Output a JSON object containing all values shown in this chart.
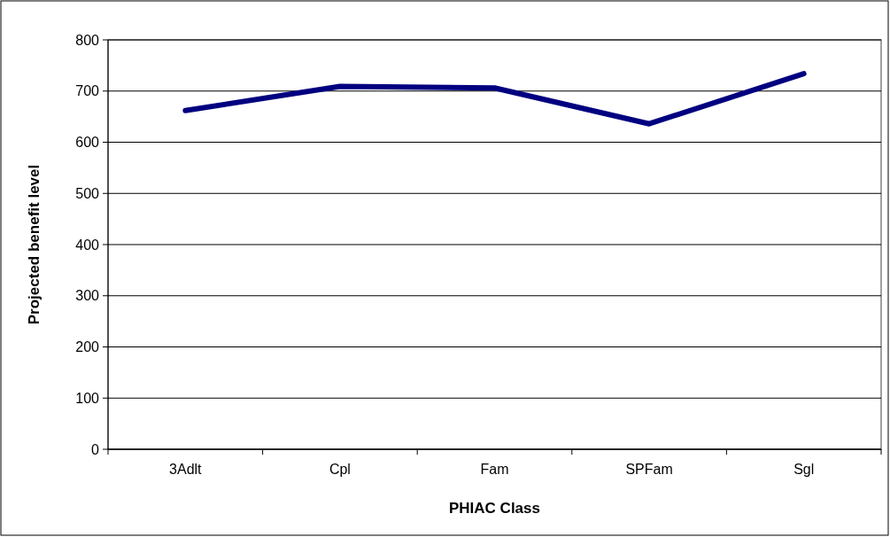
{
  "chart_data": {
    "type": "line",
    "xlabel": "PHIAC Class",
    "ylabel": "Projected benefit level",
    "categories": [
      "3Adlt",
      "Cpl",
      "Fam",
      "SPFam",
      "Sgl"
    ],
    "series": [
      {
        "color": "#000080",
        "values": [
          662,
          709,
          706,
          636,
          734
        ]
      }
    ],
    "ylim": [
      0,
      800
    ],
    "yticks": [
      0,
      100,
      200,
      300,
      400,
      500,
      600,
      700,
      800
    ],
    "grid": "y",
    "marker": "none",
    "line_style": "solid"
  }
}
